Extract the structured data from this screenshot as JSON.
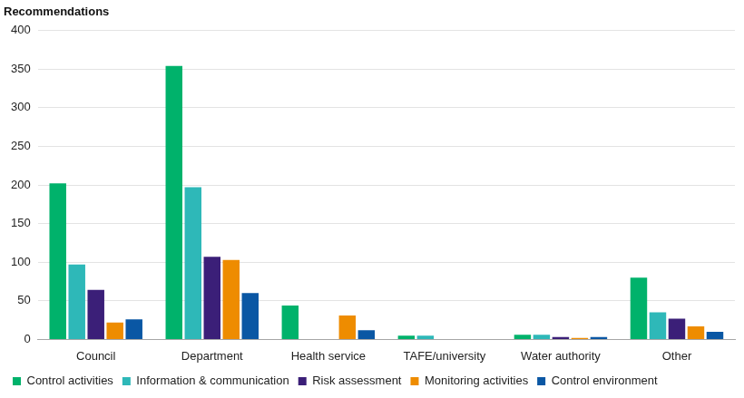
{
  "chart_data": {
    "type": "bar",
    "y_label": "Recommendations",
    "categories": [
      "Council",
      "Department",
      "Health service",
      "TAFE/university",
      "Water authority",
      "Other"
    ],
    "series": [
      {
        "name": "Control activities",
        "color": "#00b26b",
        "values": [
          202,
          354,
          44,
          5,
          6,
          80
        ]
      },
      {
        "name": "Information & communication",
        "color": "#2eb8b8",
        "values": [
          97,
          197,
          0,
          5,
          6,
          35
        ]
      },
      {
        "name": "Risk assessment",
        "color": "#3b1f78",
        "values": [
          64,
          107,
          0,
          0,
          3,
          27
        ]
      },
      {
        "name": "Monitoring activities",
        "color": "#ee8c00",
        "values": [
          22,
          103,
          31,
          0,
          2,
          17
        ]
      },
      {
        "name": "Control environment",
        "color": "#0a57a4",
        "values": [
          26,
          60,
          12,
          0,
          3,
          10
        ]
      }
    ],
    "ylim": [
      0,
      400
    ],
    "yticks": [
      0,
      50,
      100,
      150,
      200,
      250,
      300,
      350,
      400
    ],
    "grid": true,
    "legend": "bottom"
  }
}
